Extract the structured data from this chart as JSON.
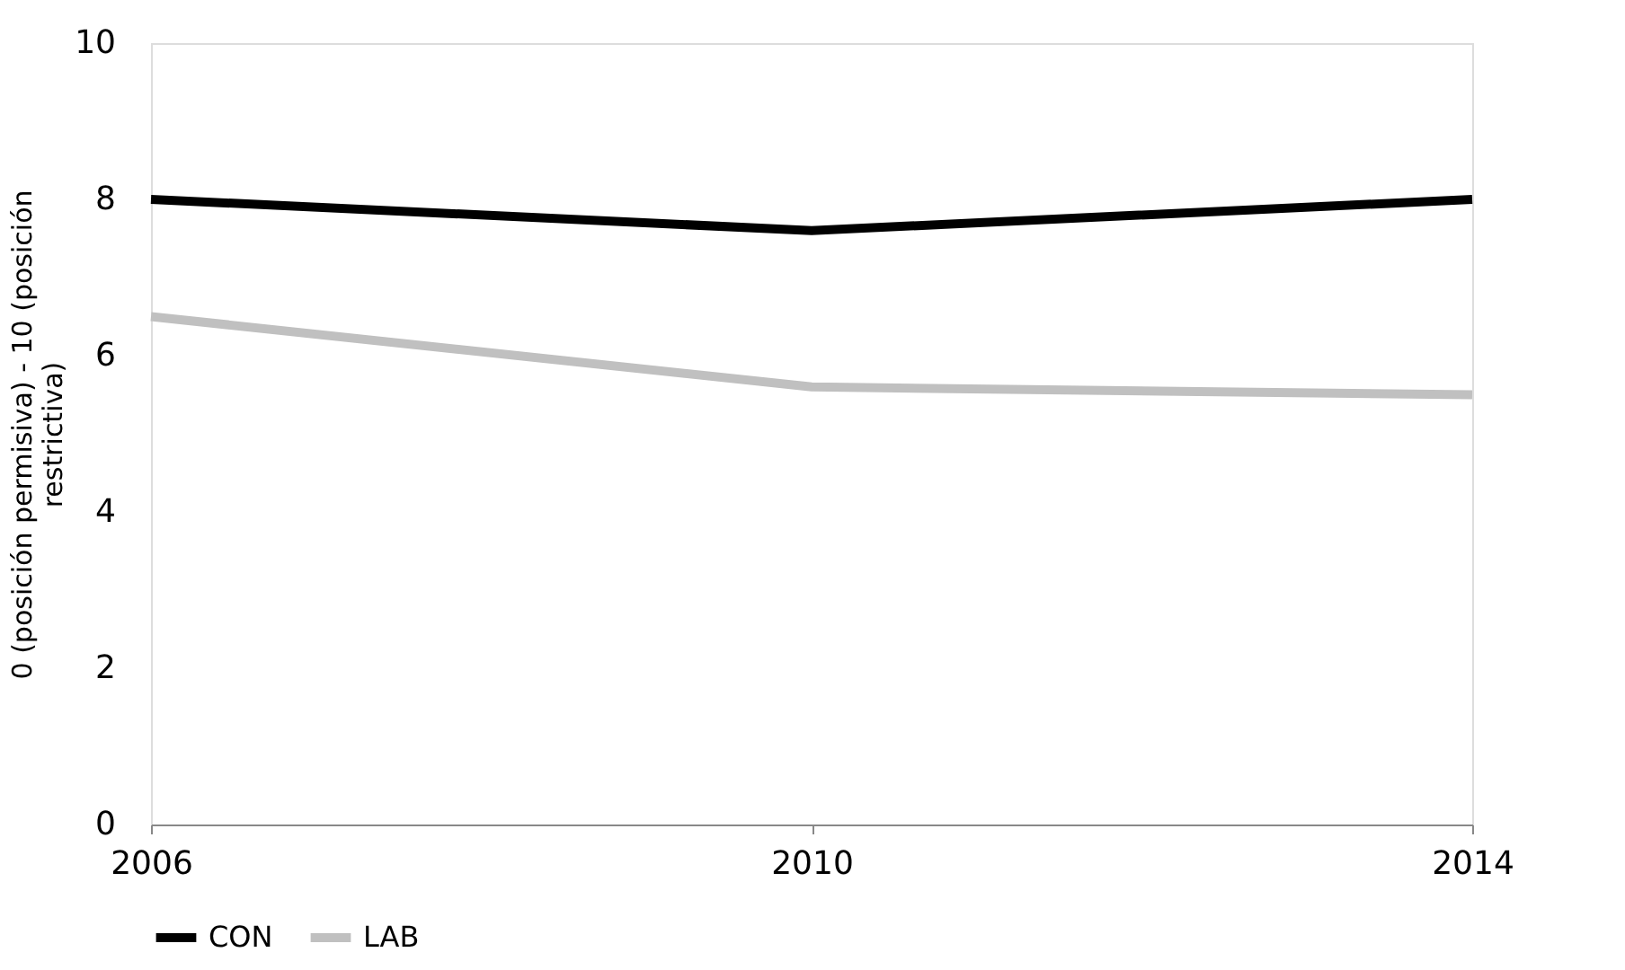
{
  "chart_data": {
    "type": "line",
    "ylabel": "0 (posición permisiva) - 10 (posición restrictiva)",
    "categories": [
      "2006",
      "2010",
      "2014"
    ],
    "ylim": [
      0,
      10
    ],
    "yticks": [
      0,
      2,
      4,
      6,
      8,
      10
    ],
    "grid": false,
    "legend": "bottom",
    "marker": "none",
    "line_style": "solid",
    "series": [
      {
        "name": "CON",
        "color": "#000000",
        "values": [
          8.0,
          7.6,
          8.0
        ]
      },
      {
        "name": "LAB",
        "color": "#c0c0c0",
        "values": [
          6.5,
          5.6,
          5.5
        ]
      }
    ]
  }
}
